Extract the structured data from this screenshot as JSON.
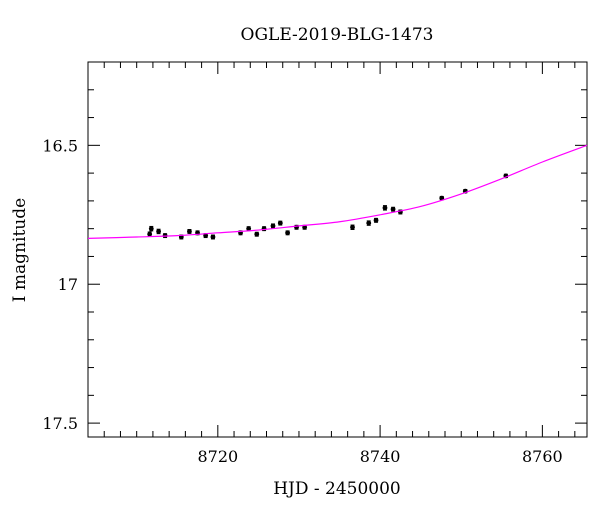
{
  "chart_data": {
    "type": "scatter",
    "title": "OGLE-2019-BLG-1473",
    "xlabel": "HJD - 2450000",
    "ylabel": "I magnitude",
    "xlim": [
      8704,
      8765.5
    ],
    "ylim": [
      17.55,
      16.2
    ],
    "y_inverted": true,
    "grid": false,
    "x_major_ticks": [
      8720,
      8740,
      8760
    ],
    "x_tick_labels": [
      "8720",
      "8740",
      "8760"
    ],
    "x_minor_step": 2,
    "y_major_ticks": [
      16.5,
      17,
      17.5
    ],
    "y_tick_labels": [
      "16.5",
      "17",
      "17.5"
    ],
    "y_minor_step": 0.1,
    "series": [
      {
        "kind": "points",
        "color": "#000000",
        "points": [
          {
            "x": 8711.6,
            "y": 16.82,
            "err": 0.008
          },
          {
            "x": 8711.8,
            "y": 16.8,
            "err": 0.008
          },
          {
            "x": 8712.7,
            "y": 16.81,
            "err": 0.008
          },
          {
            "x": 8713.5,
            "y": 16.825,
            "err": 0.007
          },
          {
            "x": 8715.5,
            "y": 16.83,
            "err": 0.007
          },
          {
            "x": 8716.5,
            "y": 16.81,
            "err": 0.007
          },
          {
            "x": 8717.5,
            "y": 16.815,
            "err": 0.007
          },
          {
            "x": 8718.5,
            "y": 16.825,
            "err": 0.007
          },
          {
            "x": 8719.4,
            "y": 16.83,
            "err": 0.007
          },
          {
            "x": 8722.8,
            "y": 16.815,
            "err": 0.007
          },
          {
            "x": 8723.8,
            "y": 16.8,
            "err": 0.007
          },
          {
            "x": 8724.8,
            "y": 16.82,
            "err": 0.007
          },
          {
            "x": 8725.7,
            "y": 16.8,
            "err": 0.007
          },
          {
            "x": 8726.8,
            "y": 16.79,
            "err": 0.007
          },
          {
            "x": 8727.7,
            "y": 16.78,
            "err": 0.007
          },
          {
            "x": 8728.6,
            "y": 16.815,
            "err": 0.007
          },
          {
            "x": 8729.7,
            "y": 16.795,
            "err": 0.007
          },
          {
            "x": 8730.7,
            "y": 16.795,
            "err": 0.007
          },
          {
            "x": 8736.6,
            "y": 16.795,
            "err": 0.008
          },
          {
            "x": 8738.6,
            "y": 16.78,
            "err": 0.008
          },
          {
            "x": 8739.5,
            "y": 16.77,
            "err": 0.007
          },
          {
            "x": 8740.6,
            "y": 16.725,
            "err": 0.008
          },
          {
            "x": 8741.6,
            "y": 16.73,
            "err": 0.007
          },
          {
            "x": 8742.5,
            "y": 16.74,
            "err": 0.007
          },
          {
            "x": 8747.6,
            "y": 16.69,
            "err": 0.006
          },
          {
            "x": 8750.5,
            "y": 16.665,
            "err": 0.006
          },
          {
            "x": 8755.5,
            "y": 16.61,
            "err": 0.006
          }
        ]
      },
      {
        "kind": "model-curve",
        "color": "#ff00ff",
        "points": [
          {
            "x": 8704,
            "y": 16.835
          },
          {
            "x": 8710,
            "y": 16.83
          },
          {
            "x": 8715,
            "y": 16.825
          },
          {
            "x": 8720,
            "y": 16.815
          },
          {
            "x": 8725,
            "y": 16.805
          },
          {
            "x": 8730,
            "y": 16.79
          },
          {
            "x": 8735,
            "y": 16.775
          },
          {
            "x": 8740,
            "y": 16.75
          },
          {
            "x": 8745,
            "y": 16.72
          },
          {
            "x": 8750,
            "y": 16.675
          },
          {
            "x": 8755,
            "y": 16.62
          },
          {
            "x": 8760,
            "y": 16.56
          },
          {
            "x": 8765.5,
            "y": 16.5
          }
        ]
      }
    ]
  }
}
